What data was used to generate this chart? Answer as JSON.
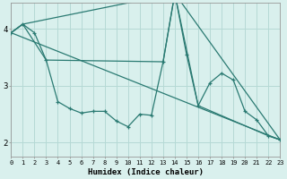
{
  "xlabel": "Humidex (Indice chaleur)",
  "x_min": 0,
  "x_max": 23,
  "y_min": 1.75,
  "y_max": 4.45,
  "yticks": [
    2,
    3,
    4
  ],
  "xticks": [
    0,
    1,
    2,
    3,
    4,
    5,
    6,
    7,
    8,
    9,
    10,
    11,
    12,
    13,
    14,
    15,
    16,
    17,
    18,
    19,
    20,
    21,
    22,
    23
  ],
  "background_color": "#d9f0ed",
  "grid_color": "#b5d9d5",
  "line_color": "#2a7a72",
  "line1_x": [
    0,
    1,
    2,
    3,
    4,
    5,
    6,
    7,
    8,
    9,
    10,
    11,
    12,
    13,
    14,
    15,
    16,
    17,
    18,
    19,
    20,
    21,
    22,
    23
  ],
  "line1_y": [
    3.93,
    4.08,
    3.93,
    3.45,
    2.72,
    2.6,
    2.52,
    2.55,
    2.55,
    2.38,
    2.28,
    2.5,
    2.48,
    3.42,
    4.62,
    3.55,
    2.65,
    3.05,
    3.22,
    3.1,
    2.55,
    2.4,
    2.12,
    2.05
  ],
  "line2_x": [
    0,
    1,
    3,
    13,
    14,
    16,
    22,
    23
  ],
  "line2_y": [
    3.93,
    4.08,
    3.45,
    3.42,
    4.62,
    2.65,
    2.12,
    2.05
  ],
  "line3_x": [
    0,
    1,
    14,
    23
  ],
  "line3_y": [
    3.93,
    4.08,
    4.62,
    2.05
  ],
  "line4_x": [
    0,
    23
  ],
  "line4_y": [
    3.93,
    2.05
  ]
}
